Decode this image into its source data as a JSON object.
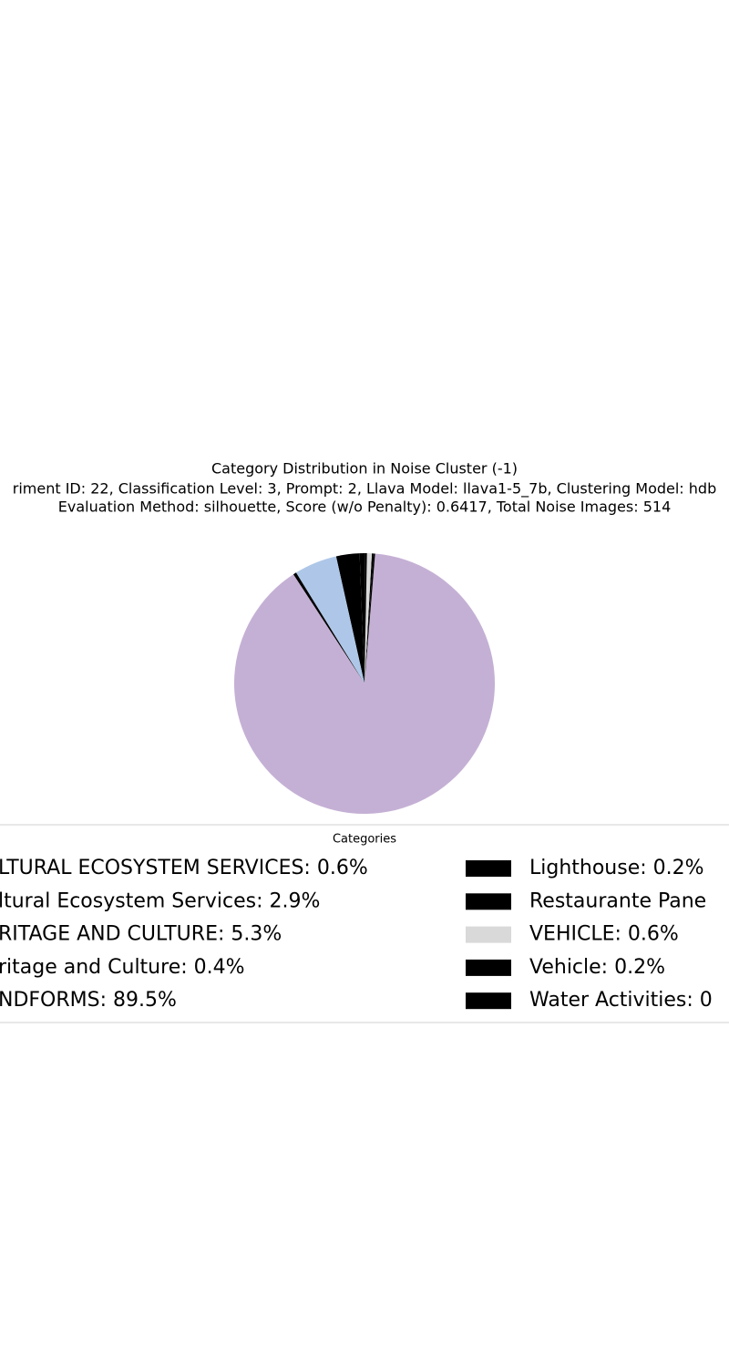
{
  "chart_data": {
    "type": "pie",
    "title": "Category Distribution in Noise Cluster (-1)",
    "subtitle": [
      "riment ID: 22, Classification Level: 3, Prompt: 2, Llava Model: llava1-5_7b, Clustering Model: hdb",
      "Evaluation Method: silhouette, Score (w/o Penalty): 0.6417, Total Noise Images: 514"
    ],
    "legend_title": "Categories",
    "categories": [
      "LTURAL ECOSYSTEM SERVICES: 0.6%",
      "ltural Ecosystem Services: 2.9%",
      "RITAGE AND CULTURE: 5.3%",
      "ritage and Culture: 0.4%",
      "NDFORMS: 89.5%",
      "Lighthouse: 0.2%",
      "Restaurante Pane",
      "VEHICLE: 0.6%",
      "Vehicle: 0.2%",
      "Water Activities: 0"
    ],
    "values": [
      0.6,
      2.9,
      5.3,
      0.4,
      89.5,
      0.2,
      0.2,
      0.6,
      0.2,
      0.1
    ],
    "colors": [
      "#000000",
      "#000000",
      "#aec7e8",
      "#000000",
      "#c5b0d5",
      "#000000",
      "#000000",
      "#d9d9d9",
      "#000000",
      "#000000"
    ]
  }
}
